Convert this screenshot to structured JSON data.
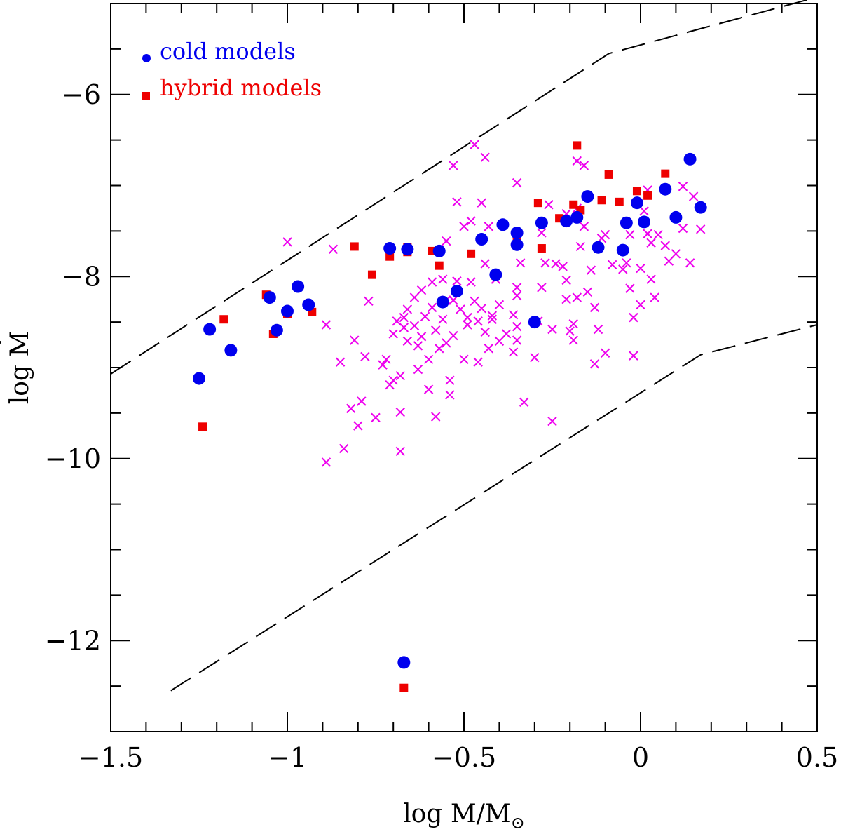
{
  "chart_data": {
    "type": "scatter",
    "title": "",
    "xlabel": {
      "prefix": "log  M/M",
      "sub": "⊙"
    },
    "ylabel": {
      "prefix": "log ",
      "mark": "M",
      "dot": "˙"
    },
    "xlim": [
      -1.5,
      0.5
    ],
    "ylim": [
      -13,
      -5
    ],
    "x_major_ticks": [
      -1.5,
      -1,
      -0.5,
      0,
      0.5
    ],
    "x_tick_labels": [
      "−1.5",
      "−1",
      "−0.5",
      "0",
      "0.5"
    ],
    "x_minor_step": 0.1,
    "y_major_ticks": [
      -12,
      -10,
      -8,
      -6
    ],
    "y_tick_labels": [
      "−12",
      "−10",
      "−8",
      "−6"
    ],
    "y_minor_step": 0.5,
    "colors": {
      "cold": "#0000ee",
      "hybrid": "#ee0000",
      "obs": "#ee00ee",
      "axis": "#000000"
    },
    "legend": [
      {
        "label": "cold models",
        "color": "#0000ee",
        "marker": "circle"
      },
      {
        "label": "hybrid models",
        "color": "#ee0000",
        "marker": "square"
      }
    ],
    "dashed_lines": [
      {
        "name": "upper-boundary",
        "points": [
          [
            -1.5,
            -9.07
          ],
          [
            -0.09,
            -5.55
          ],
          [
            0.5,
            -4.93
          ]
        ]
      },
      {
        "name": "lower-boundary",
        "points": [
          [
            -1.33,
            -12.55
          ],
          [
            0.17,
            -8.86
          ],
          [
            0.5,
            -8.53
          ]
        ]
      }
    ],
    "series": [
      {
        "name": "cold models",
        "marker": "circle",
        "color": "#0000ee",
        "points": [
          [
            -1.25,
            -9.12
          ],
          [
            -1.22,
            -8.58
          ],
          [
            -1.16,
            -8.81
          ],
          [
            -1.05,
            -8.23
          ],
          [
            -1.03,
            -8.59
          ],
          [
            -1.0,
            -8.38
          ],
          [
            -0.97,
            -8.11
          ],
          [
            -0.94,
            -8.31
          ],
          [
            -0.71,
            -7.69
          ],
          [
            -0.66,
            -7.7
          ],
          [
            -0.57,
            -7.72
          ],
          [
            -0.56,
            -8.28
          ],
          [
            -0.52,
            -8.16
          ],
          [
            -0.45,
            -7.59
          ],
          [
            -0.41,
            -7.98
          ],
          [
            -0.39,
            -7.43
          ],
          [
            -0.35,
            -7.52
          ],
          [
            -0.35,
            -7.65
          ],
          [
            -0.3,
            -8.5
          ],
          [
            -0.28,
            -7.41
          ],
          [
            -0.21,
            -7.39
          ],
          [
            -0.18,
            -7.35
          ],
          [
            -0.15,
            -7.12
          ],
          [
            -0.12,
            -7.68
          ],
          [
            -0.05,
            -7.71
          ],
          [
            -0.04,
            -7.41
          ],
          [
            -0.01,
            -7.19
          ],
          [
            0.01,
            -7.4
          ],
          [
            0.07,
            -7.04
          ],
          [
            0.1,
            -7.35
          ],
          [
            0.14,
            -6.71
          ],
          [
            0.17,
            -7.24
          ],
          [
            -0.67,
            -12.24
          ]
        ]
      },
      {
        "name": "hybrid models",
        "marker": "square",
        "color": "#ee0000",
        "points": [
          [
            -1.24,
            -9.65
          ],
          [
            -1.18,
            -8.47
          ],
          [
            -1.06,
            -8.2
          ],
          [
            -1.04,
            -8.63
          ],
          [
            -1.0,
            -8.41
          ],
          [
            -0.93,
            -8.39
          ],
          [
            -0.81,
            -7.67
          ],
          [
            -0.76,
            -7.98
          ],
          [
            -0.71,
            -7.78
          ],
          [
            -0.66,
            -7.68
          ],
          [
            -0.66,
            -7.73
          ],
          [
            -0.59,
            -7.72
          ],
          [
            -0.57,
            -7.88
          ],
          [
            -0.48,
            -7.75
          ],
          [
            -0.41,
            -7.99
          ],
          [
            -0.35,
            -7.56
          ],
          [
            -0.29,
            -7.19
          ],
          [
            -0.28,
            -7.69
          ],
          [
            -0.23,
            -7.36
          ],
          [
            -0.19,
            -7.21
          ],
          [
            -0.18,
            -6.56
          ],
          [
            -0.17,
            -7.27
          ],
          [
            -0.11,
            -7.16
          ],
          [
            -0.09,
            -6.88
          ],
          [
            -0.06,
            -7.18
          ],
          [
            -0.01,
            -7.06
          ],
          [
            0.02,
            -7.11
          ],
          [
            0.07,
            -6.87
          ],
          [
            -0.67,
            -12.52
          ]
        ]
      },
      {
        "name": "observations",
        "marker": "cross",
        "color": "#ee00ee",
        "points": [
          [
            -1.0,
            -7.62
          ],
          [
            -0.89,
            -8.53
          ],
          [
            -0.89,
            -10.04
          ],
          [
            -0.87,
            -7.7
          ],
          [
            -0.85,
            -8.94
          ],
          [
            -0.84,
            -9.89
          ],
          [
            -0.82,
            -9.45
          ],
          [
            -0.81,
            -8.7
          ],
          [
            -0.8,
            -9.64
          ],
          [
            -0.79,
            -9.37
          ],
          [
            -0.78,
            -8.88
          ],
          [
            -0.77,
            -8.27
          ],
          [
            -0.75,
            -9.55
          ],
          [
            -0.73,
            -8.97
          ],
          [
            -0.72,
            -8.91
          ],
          [
            -0.71,
            -9.19
          ],
          [
            -0.7,
            -9.14
          ],
          [
            -0.7,
            -8.63
          ],
          [
            -0.69,
            -8.49
          ],
          [
            -0.68,
            -9.09
          ],
          [
            -0.68,
            -9.49
          ],
          [
            -0.68,
            -9.92
          ],
          [
            -0.67,
            -8.56
          ],
          [
            -0.67,
            -8.45
          ],
          [
            -0.66,
            -8.71
          ],
          [
            -0.66,
            -8.36
          ],
          [
            -0.64,
            -8.54
          ],
          [
            -0.64,
            -8.23
          ],
          [
            -0.63,
            -8.76
          ],
          [
            -0.63,
            -9.02
          ],
          [
            -0.62,
            -8.15
          ],
          [
            -0.62,
            -8.66
          ],
          [
            -0.61,
            -8.44
          ],
          [
            -0.6,
            -8.91
          ],
          [
            -0.6,
            -9.24
          ],
          [
            -0.59,
            -8.06
          ],
          [
            -0.59,
            -8.34
          ],
          [
            -0.58,
            -8.59
          ],
          [
            -0.58,
            -9.54
          ],
          [
            -0.57,
            -8.79
          ],
          [
            -0.56,
            -8.47
          ],
          [
            -0.56,
            -8.03
          ],
          [
            -0.55,
            -7.61
          ],
          [
            -0.55,
            -8.26
          ],
          [
            -0.55,
            -8.73
          ],
          [
            -0.54,
            -9.14
          ],
          [
            -0.54,
            -9.3
          ],
          [
            -0.53,
            -8.26
          ],
          [
            -0.53,
            -8.65
          ],
          [
            -0.53,
            -6.78
          ],
          [
            -0.52,
            -7.18
          ],
          [
            -0.52,
            -8.05
          ],
          [
            -0.51,
            -8.36
          ],
          [
            -0.5,
            -8.91
          ],
          [
            -0.5,
            -7.45
          ],
          [
            -0.49,
            -8.53
          ],
          [
            -0.49,
            -8.45
          ],
          [
            -0.48,
            -7.39
          ],
          [
            -0.48,
            -8.06
          ],
          [
            -0.47,
            -8.27
          ],
          [
            -0.47,
            -6.55
          ],
          [
            -0.46,
            -8.94
          ],
          [
            -0.46,
            -8.49
          ],
          [
            -0.45,
            -8.35
          ],
          [
            -0.45,
            -7.19
          ],
          [
            -0.44,
            -8.61
          ],
          [
            -0.44,
            -7.86
          ],
          [
            -0.44,
            -6.69
          ],
          [
            -0.43,
            -8.79
          ],
          [
            -0.43,
            -7.45
          ],
          [
            -0.42,
            -8.47
          ],
          [
            -0.42,
            -8.43
          ],
          [
            -0.41,
            -8.03
          ],
          [
            -0.4,
            -8.31
          ],
          [
            -0.4,
            -8.71
          ],
          [
            -0.38,
            -8.63
          ],
          [
            -0.36,
            -8.83
          ],
          [
            -0.36,
            -8.42
          ],
          [
            -0.35,
            -8.12
          ],
          [
            -0.35,
            -6.97
          ],
          [
            -0.35,
            -8.7
          ],
          [
            -0.35,
            -8.55
          ],
          [
            -0.35,
            -8.21
          ],
          [
            -0.34,
            -7.85
          ],
          [
            -0.33,
            -9.38
          ],
          [
            -0.3,
            -8.89
          ],
          [
            -0.29,
            -8.49
          ],
          [
            -0.28,
            -7.52
          ],
          [
            -0.28,
            -8.12
          ],
          [
            -0.27,
            -7.85
          ],
          [
            -0.26,
            -7.21
          ],
          [
            -0.25,
            -8.58
          ],
          [
            -0.25,
            -9.59
          ],
          [
            -0.24,
            -7.86
          ],
          [
            -0.22,
            -7.89
          ],
          [
            -0.21,
            -7.31
          ],
          [
            -0.21,
            -8.04
          ],
          [
            -0.21,
            -8.25
          ],
          [
            -0.2,
            -8.6
          ],
          [
            -0.19,
            -8.52
          ],
          [
            -0.19,
            -8.7
          ],
          [
            -0.18,
            -7.25
          ],
          [
            -0.18,
            -8.23
          ],
          [
            -0.18,
            -6.73
          ],
          [
            -0.17,
            -7.67
          ],
          [
            -0.16,
            -7.45
          ],
          [
            -0.16,
            -6.78
          ],
          [
            -0.15,
            -8.17
          ],
          [
            -0.14,
            -7.93
          ],
          [
            -0.13,
            -8.34
          ],
          [
            -0.13,
            -8.96
          ],
          [
            -0.12,
            -8.58
          ],
          [
            -0.11,
            -7.58
          ],
          [
            -0.1,
            -7.54
          ],
          [
            -0.1,
            -8.84
          ],
          [
            -0.08,
            -7.87
          ],
          [
            -0.05,
            -7.92
          ],
          [
            -0.04,
            -7.85
          ],
          [
            -0.03,
            -8.13
          ],
          [
            -0.03,
            -7.54
          ],
          [
            -0.02,
            -8.45
          ],
          [
            -0.02,
            -8.87
          ],
          [
            0.0,
            -7.91
          ],
          [
            0.0,
            -8.31
          ],
          [
            0.01,
            -7.28
          ],
          [
            0.02,
            -7.05
          ],
          [
            0.02,
            -7.53
          ],
          [
            0.03,
            -7.63
          ],
          [
            0.03,
            -8.03
          ],
          [
            0.04,
            -8.23
          ],
          [
            0.05,
            -7.54
          ],
          [
            0.07,
            -7.66
          ],
          [
            0.08,
            -7.83
          ],
          [
            0.1,
            -7.75
          ],
          [
            0.12,
            -7.01
          ],
          [
            0.12,
            -7.47
          ],
          [
            0.14,
            -7.85
          ],
          [
            0.15,
            -7.12
          ],
          [
            0.17,
            -7.48
          ]
        ]
      }
    ]
  }
}
